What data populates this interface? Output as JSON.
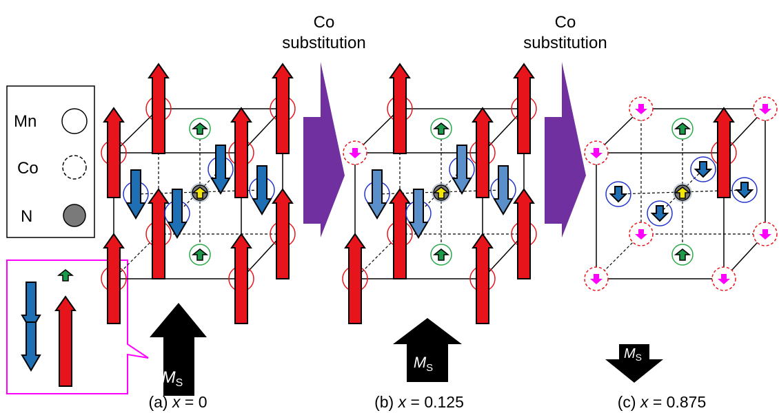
{
  "arrows": [
    {
      "line1": "Co",
      "line2": "substitution"
    },
    {
      "line1": "Co",
      "line2": "substitution"
    }
  ],
  "legend": {
    "items": [
      {
        "label": "Mn"
      },
      {
        "label": "Co"
      },
      {
        "label": "N"
      }
    ]
  },
  "panels": [
    {
      "moment": {
        "symbol": "M",
        "subscript": "S"
      },
      "caption": {
        "label": "(a)",
        "variable": "x",
        "value": "= 0"
      }
    },
    {
      "moment": {
        "symbol": "M",
        "subscript": "S"
      },
      "caption": {
        "label": "(b)",
        "variable": "x",
        "value": "= 0.125"
      }
    },
    {
      "moment": {
        "symbol": "M",
        "subscript": "S"
      },
      "caption": {
        "label": "(c)",
        "variable": "x",
        "value": "= 0.875"
      }
    }
  ]
}
